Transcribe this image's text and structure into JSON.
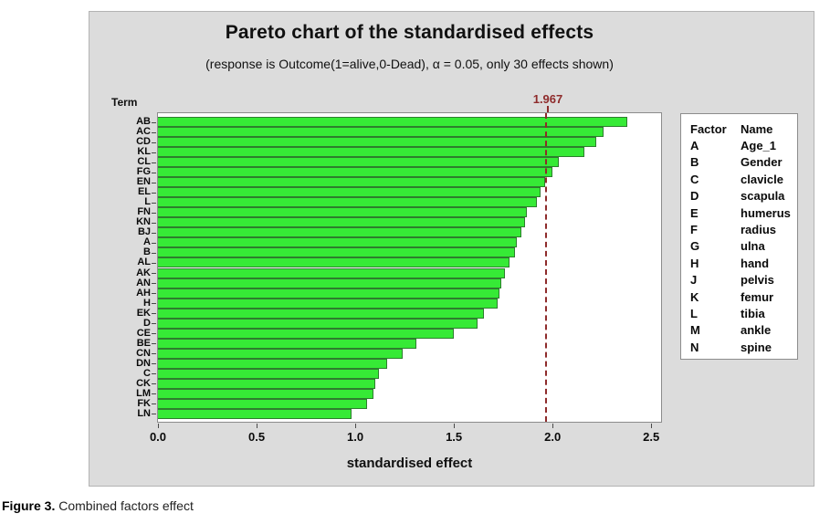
{
  "page": {
    "caption_prefix": "Figure 3.",
    "caption_text": " Combined factors effect"
  },
  "chart_data": {
    "type": "bar",
    "orientation": "horizontal",
    "title": "Pareto chart of the standardised effects",
    "subtitle": "(response is Outcome(1=alive,0-Dead), α = 0.05, only 30 effects shown)",
    "xlabel": "standardised effect",
    "ylabel": "Term",
    "xlim": [
      0,
      2.55
    ],
    "xticks": [
      0.0,
      0.5,
      1.0,
      1.5,
      2.0,
      2.5
    ],
    "grid": false,
    "reference_line": 1.967,
    "reference_line_label": "1.967",
    "categories": [
      "AB",
      "AC",
      "CD",
      "KL",
      "CL",
      "FG",
      "EN",
      "EL",
      "L",
      "FN",
      "KN",
      "BJ",
      "A",
      "B",
      "AL",
      "AK",
      "AN",
      "AH",
      "H",
      "EK",
      "D",
      "CE",
      "BE",
      "CN",
      "DN",
      "C",
      "CK",
      "LM",
      "FK",
      "LN"
    ],
    "values": [
      2.38,
      2.26,
      2.22,
      2.16,
      2.03,
      2.0,
      1.96,
      1.94,
      1.92,
      1.87,
      1.86,
      1.84,
      1.82,
      1.81,
      1.78,
      1.76,
      1.74,
      1.73,
      1.72,
      1.65,
      1.62,
      1.5,
      1.31,
      1.24,
      1.16,
      1.12,
      1.1,
      1.09,
      1.06,
      0.98
    ],
    "bar_color": "#36ea36",
    "bar_border_color": "#2e7d2e",
    "reference_color": "#8e2b2b",
    "panel_background": "#dcdcdc",
    "plot_background": "#ffffff"
  },
  "legend": {
    "headers": [
      "Factor",
      "Name"
    ],
    "rows": [
      [
        "A",
        "Age_1"
      ],
      [
        "B",
        "Gender"
      ],
      [
        "C",
        "clavicle"
      ],
      [
        "D",
        "scapula"
      ],
      [
        "E",
        "humerus"
      ],
      [
        "F",
        "radius"
      ],
      [
        "G",
        "ulna"
      ],
      [
        "H",
        "hand"
      ],
      [
        "J",
        "pelvis"
      ],
      [
        "K",
        "femur"
      ],
      [
        "L",
        "tibia"
      ],
      [
        "M",
        "ankle"
      ],
      [
        "N",
        "spine"
      ]
    ]
  }
}
